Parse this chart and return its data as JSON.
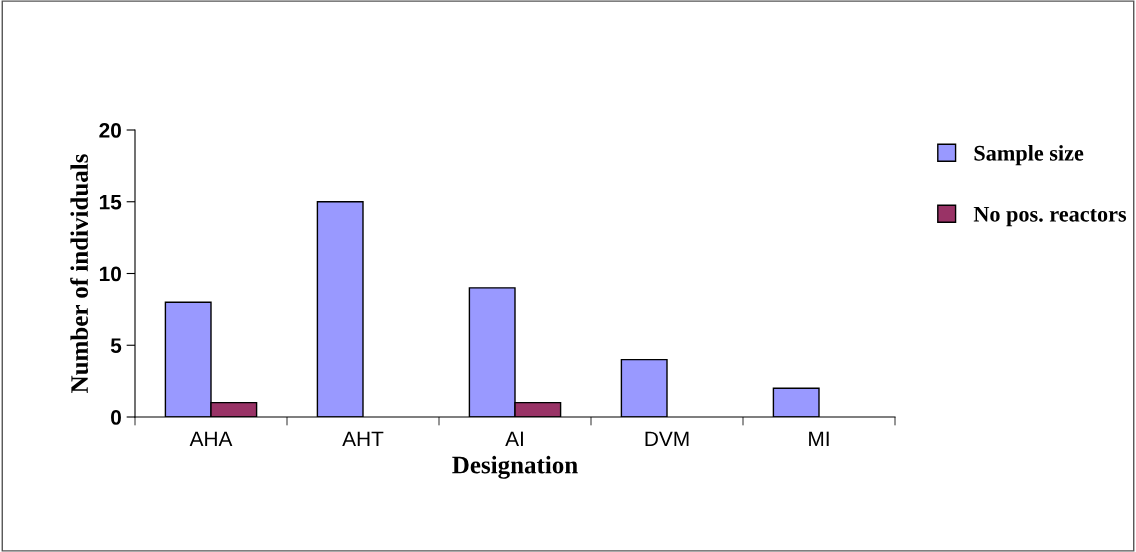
{
  "chart_data": {
    "type": "bar",
    "xlabel": "Designation",
    "ylabel": "Number of individuals",
    "categories": [
      "AHA",
      "AHT",
      "AI",
      "DVM",
      "MI"
    ],
    "series": [
      {
        "name": "Sample size",
        "color": "#9999ff",
        "values": [
          8,
          15,
          9,
          4,
          2
        ]
      },
      {
        "name": "No pos. reactors",
        "color": "#993366",
        "values": [
          1,
          0,
          1,
          0,
          0
        ]
      }
    ],
    "ylim": [
      0,
      20
    ],
    "yticks": [
      0,
      5,
      10,
      15,
      20
    ],
    "grid": false,
    "legend": "right"
  }
}
